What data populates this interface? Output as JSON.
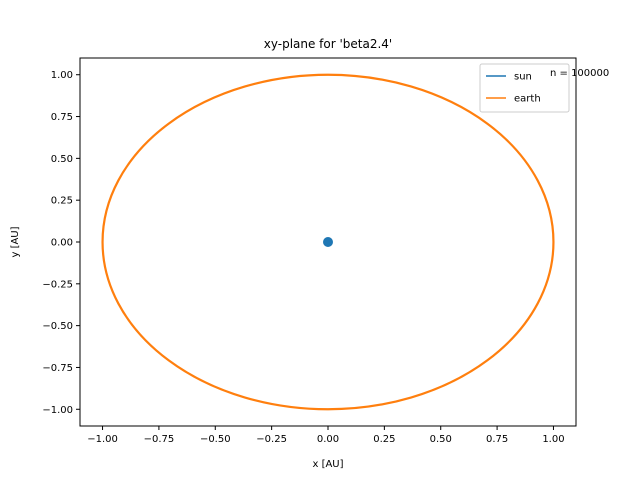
{
  "chart_data": {
    "type": "line",
    "title": "xy-plane for 'beta2.4'",
    "xlabel": "x [AU]",
    "ylabel": "y [AU]",
    "xlim": [
      -1.1,
      1.1
    ],
    "ylim": [
      -1.1,
      1.1
    ],
    "xticks": [
      -1.0,
      -0.75,
      -0.5,
      -0.25,
      0.0,
      0.25,
      0.5,
      0.75,
      1.0
    ],
    "xtick_labels": [
      "−1.00",
      "−0.75",
      "−0.50",
      "−0.25",
      "0.00",
      "0.25",
      "0.50",
      "0.75",
      "1.00"
    ],
    "yticks": [
      -1.0,
      -0.75,
      -0.5,
      -0.25,
      0.0,
      0.25,
      0.5,
      0.75,
      1.0
    ],
    "ytick_labels": [
      "−1.00",
      "−0.75",
      "−0.50",
      "−0.25",
      "0.00",
      "0.25",
      "0.50",
      "0.75",
      "1.00"
    ],
    "grid": false,
    "legend_position": "top-right",
    "annotation": "n = 100000",
    "series": [
      {
        "name": "sun",
        "color": "#1f77b4",
        "shape": "point",
        "center": [
          0.0,
          0.0
        ]
      },
      {
        "name": "earth",
        "color": "#ff7f0e",
        "shape": "ellipse",
        "center": [
          0.0,
          0.0
        ],
        "semi_axis_x": 1.0,
        "semi_axis_y": 1.0
      }
    ]
  }
}
